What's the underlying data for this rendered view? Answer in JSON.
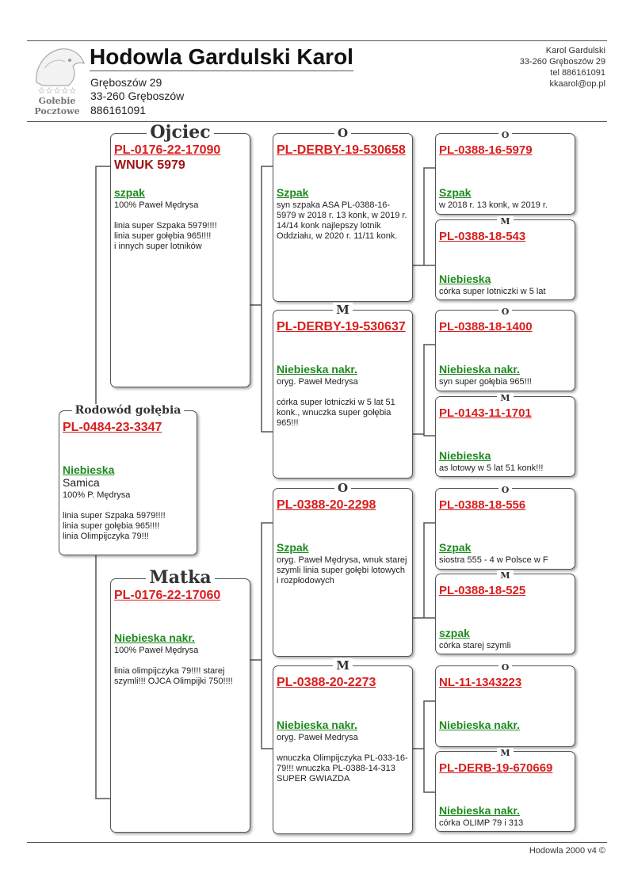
{
  "header": {
    "title": "Hodowla Gardulski Karol",
    "address_lines": [
      "Gręboszów 29",
      "33-260 Gręboszów",
      "886161091"
    ],
    "logo_text": [
      "☆☆☆☆☆",
      "Gołebie",
      "Pocztowe"
    ],
    "right_info": [
      "Karol Gardulski",
      "33-260 Gręboszów 29",
      "tel 886161091",
      "kkaarol@op.pl"
    ]
  },
  "footer": "Hodowla 2000 v4 ©",
  "colors": {
    "ring": "#d81e1e",
    "color_name": "#1e8a1e",
    "name": "#a01515"
  },
  "subject": {
    "label": "Rodowód gołębia",
    "ring": "PL-0484-23-3347",
    "color": "Niebieska",
    "sex": "Samica",
    "desc": "100% P. Mędrysa\n\nlinia super Szpaka 5979!!!!\nlinia super gołębia 965!!!!\nlinia Olimpijczyka 79!!!"
  },
  "parents": [
    {
      "label": "Ojciec",
      "ring": "PL-0176-22-17090",
      "name": "WNUK 5979",
      "color": "szpak",
      "desc": "100% Paweł Mędrysa\n\nlinia super Szpaka 5979!!!!\nlinia super gołębia 965!!!!\ni innych super lotników"
    },
    {
      "label": "Matka",
      "ring": "PL-0176-22-17060",
      "color": "Niebieska nakr.",
      "desc": "100% Paweł Mędrysa\n\nlinia olimpijczyka 79!!!! starej szymli!!! OJCA Olimpijki 750!!!!"
    }
  ],
  "grandparents": [
    {
      "label": "O",
      "ring": "PL-DERBY-19-530658",
      "color": "Szpak",
      "desc": "syn szpaka ASA PL-0388-16-5979 w 2018 r. 13 konk, w 2019 r. 14/14 konk najlepszy lotnik Oddziału, w 2020 r. 11/11 konk."
    },
    {
      "label": "M",
      "ring": "PL-DERBY-19-530637",
      "color": "Niebieska nakr.",
      "desc": "oryg. Paweł Medrysa\n\ncórka super lotniczki w 5 lat 51 konk., wnuczka super gołębia 965!!!"
    },
    {
      "label": "O",
      "ring": "PL-0388-20-2298",
      "color": "Szpak",
      "desc": "oryg. Paweł Mędrysa, wnuk starej szymli linia super gołębi lotowych i rozpłodowych"
    },
    {
      "label": "M",
      "ring": "PL-0388-20-2273",
      "color": "Niebieska nakr.",
      "desc": "oryg. Paweł Medrysa\n\nwnuczka Olimpijczyka PL-033-16-79!!! wnuczka PL-0388-14-313 SUPER GWIAZDA"
    }
  ],
  "great_grandparents": [
    {
      "label": "O",
      "ring": "PL-0388-16-5979",
      "color": "Szpak",
      "desc": "w 2018 r. 13 konk, w 2019 r."
    },
    {
      "label": "M",
      "ring": "PL-0388-18-543",
      "color": "Niebieska",
      "desc": "córka super lotniczki w 5 lat"
    },
    {
      "label": "O",
      "ring": "PL-0388-18-1400",
      "color": "Niebieska nakr.",
      "desc": "syn super gołębia 965!!!"
    },
    {
      "label": "M",
      "ring": "PL-0143-11-1701",
      "color": "Niebieska",
      "desc": "as lotowy w 5 lat 51 konk!!!"
    },
    {
      "label": "O",
      "ring": "PL-0388-18-556",
      "color": "Szpak",
      "desc": "siostra 555 - 4 w Polsce w F"
    },
    {
      "label": "M",
      "ring": "PL-0388-18-525",
      "color": "szpak",
      "desc": "córka starej szymli"
    },
    {
      "label": "O",
      "ring": "NL-11-1343223",
      "color": "Niebieska nakr.",
      "desc": ""
    },
    {
      "label": "M",
      "ring": "PL-DERB-19-670669",
      "color": "Niebieska nakr.",
      "desc": "córka OLIMP 79 i 313"
    }
  ]
}
